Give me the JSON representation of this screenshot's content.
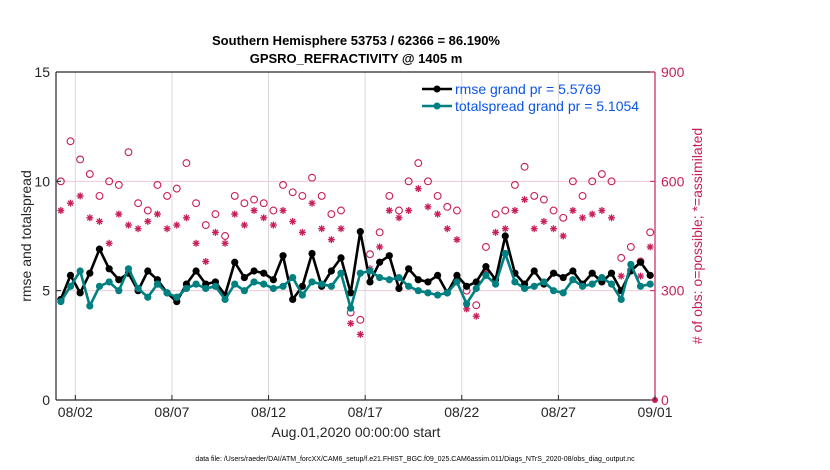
{
  "chart_data": {
    "type": "line",
    "title": "Southern Hemisphere 53753 / 62366 = 86.190%",
    "subtitle": "GPSRO_REFRACTIVITY @ 1405 m",
    "xlabel": "Aug.01,2020 00:00:00 start",
    "ylabel": "rmse and totalspread",
    "y2label": "# of obs: o=possible; *=assimilated",
    "xlim": [
      0,
      31
    ],
    "ylim": [
      0,
      15
    ],
    "y2lim": [
      0,
      900
    ],
    "x_ticks": [
      {
        "day": 1,
        "label": "08/02"
      },
      {
        "day": 6,
        "label": "08/07"
      },
      {
        "day": 11,
        "label": "08/12"
      },
      {
        "day": 16,
        "label": "08/17"
      },
      {
        "day": 21,
        "label": "08/22"
      },
      {
        "day": 26,
        "label": "08/27"
      },
      {
        "day": 31,
        "label": "09/01"
      }
    ],
    "y_ticks": [
      0,
      5,
      10,
      15
    ],
    "y2_ticks": [
      0,
      300,
      600,
      900
    ],
    "grid": true,
    "legend_position": "top-right",
    "colors": {
      "rmse": "#000000",
      "totalspread": "#008080",
      "obs": "#c81e5a",
      "grid": "#d9d9d9",
      "legend_text": "#0a55e6"
    },
    "x": [
      0.25,
      0.75,
      1.25,
      1.75,
      2.25,
      2.75,
      3.25,
      3.75,
      4.25,
      4.75,
      5.25,
      5.75,
      6.25,
      6.75,
      7.25,
      7.75,
      8.25,
      8.75,
      9.25,
      9.75,
      10.25,
      10.75,
      11.25,
      11.75,
      12.25,
      12.75,
      13.25,
      13.75,
      14.25,
      14.75,
      15.25,
      15.75,
      16.25,
      16.75,
      17.25,
      17.75,
      18.25,
      18.75,
      19.25,
      19.75,
      20.25,
      20.75,
      21.25,
      21.75,
      22.25,
      22.75,
      23.25,
      23.75,
      24.25,
      24.75,
      25.25,
      25.75,
      26.25,
      26.75,
      27.25,
      27.75,
      28.25,
      28.75,
      29.25,
      29.75,
      30.25,
      30.75
    ],
    "series": [
      {
        "name": "rmse grand pr = 5.5769",
        "axis": "left",
        "marker": "dot",
        "values": [
          4.6,
          5.7,
          4.9,
          5.8,
          6.9,
          6.0,
          5.5,
          5.8,
          5.0,
          5.9,
          5.5,
          4.9,
          4.5,
          5.3,
          5.9,
          5.3,
          5.4,
          4.8,
          6.3,
          5.6,
          5.9,
          5.8,
          5.5,
          6.6,
          4.6,
          5.2,
          6.7,
          5.2,
          5.9,
          6.5,
          4.9,
          7.7,
          5.4,
          6.3,
          6.6,
          5.1,
          6.0,
          5.5,
          5.4,
          5.7,
          4.9,
          5.7,
          5.2,
          5.4,
          6.1,
          5.5,
          7.5,
          5.8,
          5.3,
          5.9,
          5.3,
          5.8,
          5.6,
          5.9,
          5.3,
          5.8,
          5.4,
          5.8,
          5.0,
          5.9,
          6.3,
          5.7
        ]
      },
      {
        "name": "totalspread grand pr = 5.1054",
        "axis": "left",
        "marker": "dot",
        "values": [
          4.5,
          5.2,
          5.9,
          4.3,
          5.2,
          5.4,
          5.0,
          6.0,
          5.1,
          4.7,
          5.3,
          4.9,
          4.7,
          5.1,
          5.3,
          5.1,
          5.2,
          4.6,
          5.3,
          5.0,
          5.4,
          5.3,
          5.1,
          5.2,
          5.6,
          4.8,
          5.4,
          5.3,
          5.2,
          5.8,
          4.2,
          5.8,
          5.9,
          5.6,
          5.5,
          5.6,
          5.2,
          5.0,
          4.9,
          4.8,
          4.9,
          5.4,
          4.4,
          5.1,
          5.7,
          5.3,
          6.7,
          5.4,
          5.1,
          5.2,
          5.4,
          5.0,
          4.9,
          5.5,
          5.2,
          5.3,
          5.6,
          5.3,
          4.6,
          6.2,
          5.2,
          5.3
        ]
      },
      {
        "name": "possible",
        "axis": "right",
        "marker": "circle",
        "values": [
          600,
          710,
          660,
          620,
          560,
          600,
          590,
          680,
          540,
          520,
          590,
          560,
          580,
          650,
          540,
          480,
          510,
          450,
          560,
          540,
          550,
          540,
          520,
          590,
          570,
          560,
          610,
          560,
          510,
          520,
          240,
          220,
          400,
          460,
          560,
          520,
          600,
          650,
          600,
          560,
          530,
          520,
          300,
          260,
          420,
          510,
          520,
          590,
          640,
          560,
          550,
          520,
          500,
          600,
          560,
          600,
          620,
          600,
          390,
          420,
          380,
          460
        ]
      },
      {
        "name": "assimilated",
        "axis": "right",
        "marker": "asterisk",
        "values": [
          520,
          540,
          560,
          500,
          490,
          430,
          510,
          480,
          470,
          490,
          510,
          470,
          480,
          500,
          430,
          380,
          460,
          430,
          510,
          480,
          520,
          500,
          480,
          520,
          490,
          460,
          540,
          470,
          440,
          470,
          210,
          180,
          360,
          420,
          520,
          500,
          520,
          580,
          530,
          510,
          470,
          440,
          250,
          230,
          350,
          460,
          470,
          520,
          550,
          470,
          490,
          470,
          450,
          520,
          500,
          510,
          520,
          500,
          340,
          360,
          340,
          420
        ]
      }
    ]
  },
  "footer": "data file: /Users/raeder/DAI/ATM_forcXX/CAM6_setup/f.e21.FHIST_BGC.f09_025.CAM6assim.011/Diags_NTrS_2020-08/obs_diag_output.nc"
}
